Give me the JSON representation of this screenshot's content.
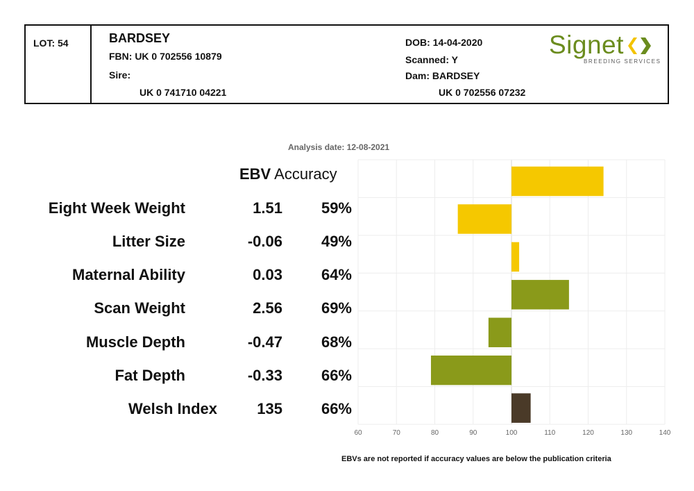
{
  "header": {
    "lot": "LOT: 54",
    "name": "BARDSEY",
    "fbn": "FBN: UK 0 702556 10879",
    "sire_label": "Sire:",
    "sire_id": "UK 0 741710 04221",
    "dob": "DOB: 14-04-2020",
    "scanned": "Scanned: Y",
    "dam": "Dam: BARDSEY",
    "dam_id": "UK 0 702556 07232"
  },
  "logo": {
    "word": "Signet",
    "sub": "BREEDING SERVICES",
    "colors": {
      "green": "#6b8c1e",
      "yellow": "#f3c300"
    }
  },
  "analysis_date": "Analysis date: 12-08-2021",
  "columns": {
    "ebv": "EBV",
    "accuracy": "Accuracy"
  },
  "footnote": "EBVs are not reported if accuracy values are below the publication criteria",
  "traits": [
    {
      "label": "Eight Week Weight",
      "ebv": "1.51",
      "accuracy": "59%"
    },
    {
      "label": "Litter Size",
      "ebv": "-0.06",
      "accuracy": "49%"
    },
    {
      "label": "Maternal Ability",
      "ebv": "0.03",
      "accuracy": "64%"
    },
    {
      "label": "Scan Weight",
      "ebv": "2.56",
      "accuracy": "69%"
    },
    {
      "label": "Muscle Depth",
      "ebv": "-0.47",
      "accuracy": "68%"
    },
    {
      "label": "Fat Depth",
      "ebv": "-0.33",
      "accuracy": "66%"
    },
    {
      "label": "Welsh Index",
      "ebv": "135",
      "accuracy": "66%"
    }
  ],
  "chart_data": {
    "type": "bar",
    "orientation": "horizontal",
    "baseline": 100,
    "categories": [
      "Eight Week Weight",
      "Litter Size",
      "Maternal Ability",
      "Scan Weight",
      "Muscle Depth",
      "Fat Depth",
      "Welsh Index"
    ],
    "values": [
      124,
      86,
      102,
      115,
      94,
      79,
      105
    ],
    "colors": [
      "#f5c800",
      "#f5c800",
      "#f5c800",
      "#8a9a1a",
      "#8a9a1a",
      "#8a9a1a",
      "#4a3a28"
    ],
    "xlim": [
      60,
      140
    ],
    "xticks": [
      60,
      70,
      80,
      90,
      100,
      110,
      120,
      130,
      140
    ],
    "grid": true
  }
}
